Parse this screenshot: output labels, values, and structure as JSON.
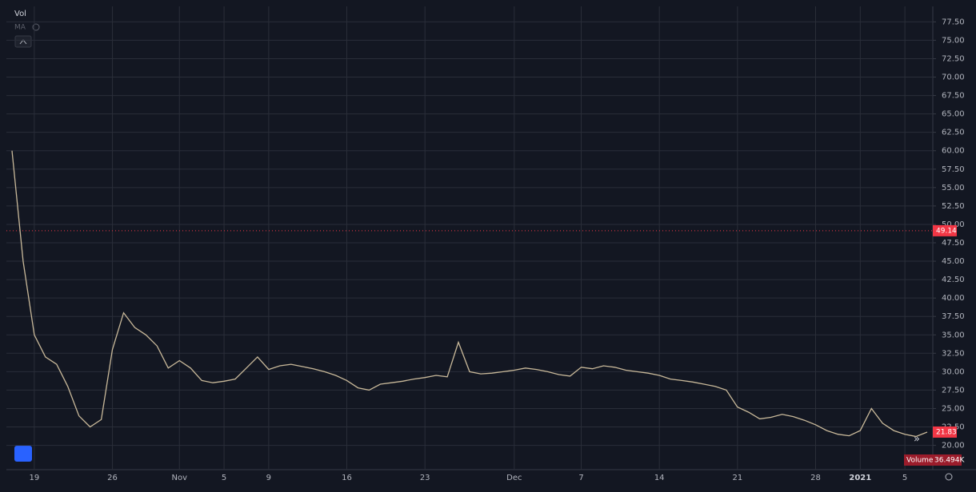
{
  "chart_data": {
    "type": "line",
    "indicator_label": "Vol",
    "ma_label": "MA",
    "volume_label": "Volume",
    "volume_value_label": "36.494K",
    "price_line": 49.14,
    "price_line_label": "49.14",
    "last_value_label": "21.83",
    "color": "#c9b99a",
    "price_line_color": "#f23645",
    "grid": true,
    "categories": [
      null,
      null,
      "19",
      null,
      null,
      null,
      null,
      null,
      null,
      "26",
      null,
      null,
      null,
      null,
      null,
      "Nov",
      null,
      null,
      null,
      "5",
      null,
      null,
      null,
      "9",
      null,
      null,
      null,
      null,
      null,
      null,
      "16",
      null,
      null,
      null,
      null,
      null,
      null,
      "23",
      null,
      null,
      null,
      null,
      null,
      null,
      null,
      "Dec",
      null,
      null,
      null,
      null,
      null,
      "7",
      null,
      null,
      null,
      null,
      null,
      null,
      "14",
      null,
      null,
      null,
      null,
      null,
      null,
      "21",
      null,
      null,
      null,
      null,
      null,
      null,
      "28",
      null,
      null,
      null,
      "2021",
      null,
      null,
      null,
      "5",
      null,
      null
    ],
    "values": [
      60,
      45,
      35,
      32,
      31,
      28,
      24,
      22.5,
      23.5,
      33,
      38,
      36,
      35,
      33.5,
      30.5,
      31.5,
      30.5,
      28.8,
      28.5,
      28.7,
      29,
      30.5,
      32,
      30.3,
      30.8,
      31,
      30.7,
      30.4,
      30,
      29.5,
      28.8,
      27.8,
      27.5,
      28.3,
      28.5,
      28.7,
      29,
      29.2,
      29.5,
      29.3,
      34,
      30,
      29.7,
      29.8,
      30,
      30.2,
      30.5,
      30.3,
      30,
      29.6,
      29.4,
      30.6,
      30.4,
      30.8,
      30.6,
      30.2,
      30,
      29.8,
      29.5,
      29,
      28.8,
      28.6,
      28.3,
      28,
      27.5,
      25.2,
      24.5,
      23.6,
      23.8,
      24.2,
      23.9,
      23.4,
      22.8,
      22,
      21.5,
      21.3,
      22,
      25,
      23,
      22,
      21.5,
      21.2,
      21.8
    ],
    "ylim": [
      16.7,
      79.6
    ],
    "yticks": [
      {
        "value": 20,
        "label": "20.00"
      },
      {
        "value": 22.5,
        "label": "22.50"
      },
      {
        "value": 25,
        "label": "25.00"
      },
      {
        "value": 27.5,
        "label": "27.50"
      },
      {
        "value": 30,
        "label": "30.00"
      },
      {
        "value": 32.5,
        "label": "32.50"
      },
      {
        "value": 35,
        "label": "35.00"
      },
      {
        "value": 37.5,
        "label": "37.50"
      },
      {
        "value": 40,
        "label": "40.00"
      },
      {
        "value": 42.5,
        "label": "42.50"
      },
      {
        "value": 45,
        "label": "45.00"
      },
      {
        "value": 47.5,
        "label": "47.50"
      },
      {
        "value": 50,
        "label": "50.00"
      },
      {
        "value": 52.5,
        "label": "52.50"
      },
      {
        "value": 55,
        "label": "55.00"
      },
      {
        "value": 57.5,
        "label": "57.50"
      },
      {
        "value": 60,
        "label": "60.00"
      },
      {
        "value": 62.5,
        "label": "62.50"
      },
      {
        "value": 65,
        "label": "65.00"
      },
      {
        "value": 67.5,
        "label": "67.50"
      },
      {
        "value": 70,
        "label": "70.00"
      },
      {
        "value": 72.5,
        "label": "72.50"
      },
      {
        "value": 75,
        "label": "75.00"
      },
      {
        "value": 77.5,
        "label": "77.50"
      }
    ]
  }
}
